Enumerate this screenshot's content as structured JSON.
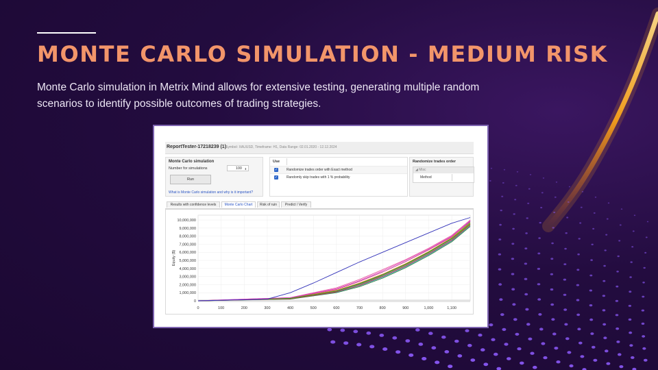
{
  "slide": {
    "title": "MONTE CARLO SIMULATION - MEDIUM RISK",
    "description": "Monte Carlo simulation in Metrix Mind allows for extensive testing, generating multiple random scenarios to identify possible outcomes of trading strategies.",
    "colors": {
      "title": "#f2956a",
      "background": "#230c3f",
      "frame": "#7d63b0"
    }
  },
  "report": {
    "title": "ReportTester-17218239 (1)",
    "meta": "Symbol: XAUUSD, Timeframe: H1, Data Range: 02.01.2020 - 12.12.2024",
    "left_panel": {
      "title": "Monte Carlo simulation",
      "sims_label": "Number for simulations",
      "sims_value": "100",
      "stepper_arrows": "⬍",
      "run_label": "Run",
      "help_link": "What is Monte Carlo simulation and why is it important?"
    },
    "use_panel": {
      "header": "Use",
      "check_glyph": "✓",
      "rows": [
        {
          "label": "Randomize trades order with Exact method",
          "checked": true
        },
        {
          "label": "Randomly skip trades with 1 % probability",
          "checked": true
        }
      ]
    },
    "right_panel": {
      "title": "Randomize trades order",
      "group": "◢ Misc",
      "method_label": "Method"
    },
    "tabs": [
      {
        "label": "Results with confidence levels",
        "active": false
      },
      {
        "label": "Monte Carlo Chart",
        "active": true
      },
      {
        "label": "Risk of ruin",
        "active": false
      },
      {
        "label": "Predict / Verify",
        "active": false
      }
    ]
  },
  "chart_data": {
    "type": "line",
    "ylabel": "Equity ($)",
    "xlabel": "",
    "xlim": [
      0,
      1180
    ],
    "ylim": [
      0,
      10600000
    ],
    "x_ticks": [
      "0",
      "100",
      "200",
      "300",
      "400",
      "500",
      "600",
      "700",
      "800",
      "900",
      "1,000",
      "1,100"
    ],
    "x_tick_values": [
      0,
      100,
      200,
      300,
      400,
      500,
      600,
      700,
      800,
      900,
      1000,
      1100
    ],
    "y_ticks": [
      "0",
      "1,000,000",
      "2,000,000",
      "3,000,000",
      "4,000,000",
      "5,000,000",
      "6,000,000",
      "7,000,000",
      "8,000,000",
      "9,000,000",
      "10,000,000"
    ],
    "y_tick_values": [
      0,
      1000000,
      2000000,
      3000000,
      4000000,
      5000000,
      6000000,
      7000000,
      8000000,
      9000000,
      10000000
    ],
    "grid": true,
    "legend": "none",
    "series": [
      {
        "color": "#2f2fb8",
        "points": [
          [
            0,
            0
          ],
          [
            300,
            200000
          ],
          [
            400,
            1000000
          ],
          [
            500,
            2200000
          ],
          [
            600,
            3500000
          ],
          [
            700,
            4800000
          ],
          [
            800,
            6000000
          ],
          [
            900,
            7200000
          ],
          [
            1000,
            8400000
          ],
          [
            1100,
            9600000
          ],
          [
            1180,
            10300000
          ]
        ]
      },
      {
        "color": "#e040c0",
        "points": [
          [
            0,
            0
          ],
          [
            400,
            400000
          ],
          [
            600,
            1500000
          ],
          [
            700,
            2500000
          ],
          [
            800,
            3700000
          ],
          [
            900,
            5000000
          ],
          [
            1000,
            6400000
          ],
          [
            1100,
            8000000
          ],
          [
            1180,
            9900000
          ]
        ]
      },
      {
        "color": "#2aa32a",
        "points": [
          [
            0,
            0
          ],
          [
            400,
            300000
          ],
          [
            600,
            1200000
          ],
          [
            700,
            2100000
          ],
          [
            800,
            3200000
          ],
          [
            900,
            4500000
          ],
          [
            1000,
            6000000
          ],
          [
            1100,
            7700000
          ],
          [
            1180,
            9600000
          ]
        ]
      },
      {
        "color": "#e08a1e",
        "points": [
          [
            0,
            0
          ],
          [
            400,
            300000
          ],
          [
            600,
            1300000
          ],
          [
            700,
            2200000
          ],
          [
            800,
            3300000
          ],
          [
            900,
            4600000
          ],
          [
            1000,
            6100000
          ],
          [
            1100,
            7800000
          ],
          [
            1180,
            9700000
          ]
        ]
      },
      {
        "color": "#d42f2f",
        "points": [
          [
            0,
            0
          ],
          [
            400,
            250000
          ],
          [
            600,
            1100000
          ],
          [
            700,
            1900000
          ],
          [
            800,
            3000000
          ],
          [
            900,
            4300000
          ],
          [
            1000,
            5800000
          ],
          [
            1100,
            7500000
          ],
          [
            1180,
            9400000
          ]
        ]
      },
      {
        "color": "#7a3fc4",
        "points": [
          [
            0,
            0
          ],
          [
            400,
            300000
          ],
          [
            600,
            1250000
          ],
          [
            700,
            2150000
          ],
          [
            800,
            3250000
          ],
          [
            900,
            4550000
          ],
          [
            1000,
            6050000
          ],
          [
            1100,
            7750000
          ],
          [
            1180,
            9800000
          ]
        ]
      },
      {
        "color": "#1fb0c4",
        "points": [
          [
            0,
            0
          ],
          [
            400,
            250000
          ],
          [
            600,
            1050000
          ],
          [
            700,
            1850000
          ],
          [
            800,
            2900000
          ],
          [
            900,
            4200000
          ],
          [
            1000,
            5700000
          ],
          [
            1100,
            7400000
          ],
          [
            1180,
            9300000
          ]
        ]
      },
      {
        "color": "#8a8a1a",
        "points": [
          [
            0,
            0
          ],
          [
            400,
            300000
          ],
          [
            600,
            1200000
          ],
          [
            700,
            2050000
          ],
          [
            800,
            3150000
          ],
          [
            900,
            4450000
          ],
          [
            1000,
            5950000
          ],
          [
            1100,
            7650000
          ],
          [
            1180,
            9500000
          ]
        ]
      },
      {
        "color": "#c43a8a",
        "points": [
          [
            0,
            0
          ],
          [
            400,
            350000
          ],
          [
            600,
            1400000
          ],
          [
            700,
            2400000
          ],
          [
            800,
            3550000
          ],
          [
            900,
            4850000
          ],
          [
            1000,
            6300000
          ],
          [
            1100,
            7900000
          ],
          [
            1180,
            9900000
          ]
        ]
      },
      {
        "color": "#3a7a3a",
        "points": [
          [
            0,
            0
          ],
          [
            400,
            200000
          ],
          [
            600,
            1000000
          ],
          [
            700,
            1750000
          ],
          [
            800,
            2800000
          ],
          [
            900,
            4100000
          ],
          [
            1000,
            5600000
          ],
          [
            1100,
            7300000
          ],
          [
            1180,
            9200000
          ]
        ]
      },
      {
        "color": "#e85fa0",
        "points": [
          [
            0,
            0
          ],
          [
            400,
            400000
          ],
          [
            600,
            1600000
          ],
          [
            700,
            2650000
          ],
          [
            800,
            3850000
          ],
          [
            900,
            5100000
          ],
          [
            1000,
            6500000
          ],
          [
            1100,
            8100000
          ],
          [
            1180,
            10000000
          ]
        ]
      },
      {
        "color": "#5b8ad6",
        "points": [
          [
            0,
            0
          ],
          [
            400,
            250000
          ],
          [
            600,
            1150000
          ],
          [
            700,
            2000000
          ],
          [
            800,
            3050000
          ],
          [
            900,
            4350000
          ],
          [
            1000,
            5850000
          ],
          [
            1100,
            7550000
          ],
          [
            1180,
            9450000
          ]
        ]
      }
    ]
  }
}
